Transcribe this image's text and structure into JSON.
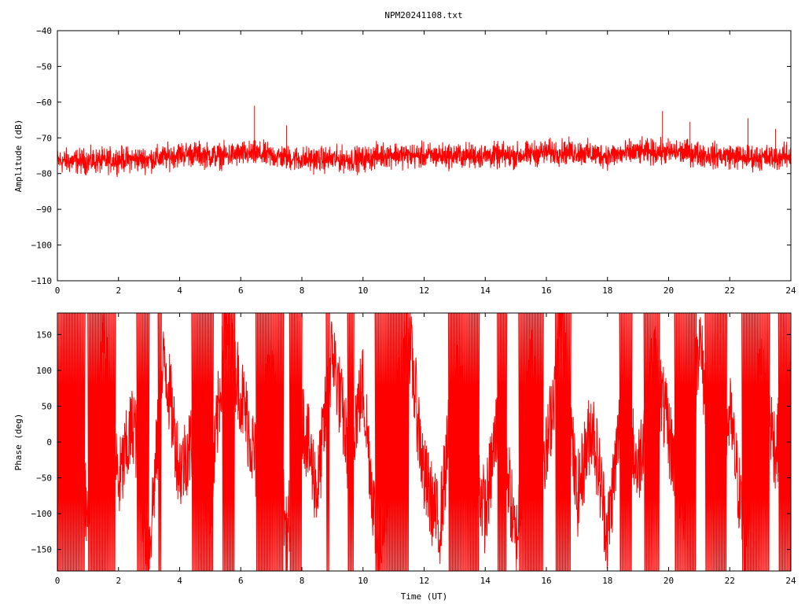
{
  "page_title": "NPM20241108.txt",
  "chart_data": [
    {
      "type": "line",
      "title": "NPM20241108.txt",
      "xlabel": "",
      "ylabel": "Amplitude (dB)",
      "xlim": [
        0,
        24
      ],
      "ylim": [
        -110,
        -40
      ],
      "xticks": [
        0,
        2,
        4,
        6,
        8,
        10,
        12,
        14,
        16,
        18,
        20,
        22,
        24
      ],
      "yticks": [
        -40,
        -50,
        -60,
        -70,
        -80,
        -90,
        -100,
        -110
      ],
      "grid": false,
      "legend": "none",
      "color": "#ff0000",
      "series": [
        {
          "x": [
            0,
            0.5,
            1,
            1.5,
            2,
            2.5,
            3,
            3.5,
            4,
            4.5,
            5,
            5.5,
            6,
            6.5,
            7,
            7.5,
            8,
            8.5,
            9,
            9.5,
            10,
            10.5,
            11,
            11.5,
            12,
            12.5,
            13,
            13.5,
            14,
            14.5,
            15,
            15.5,
            16,
            16.5,
            17,
            17.5,
            18,
            18.5,
            19,
            19.5,
            20,
            20.5,
            21,
            21.5,
            22,
            22.5,
            23,
            23.5,
            24
          ],
          "center": [
            -76.5,
            -76.5,
            -76.5,
            -76.5,
            -76,
            -76,
            -76,
            -75.5,
            -74.5,
            -74.5,
            -75,
            -75,
            -74.5,
            -74.5,
            -75,
            -75.5,
            -76,
            -76,
            -76,
            -76,
            -76,
            -75,
            -74.5,
            -75,
            -75,
            -75,
            -75,
            -75,
            -75,
            -75,
            -75,
            -74.5,
            -74,
            -74,
            -74,
            -74.5,
            -75,
            -74.5,
            -74,
            -74,
            -74,
            -74,
            -74.5,
            -75,
            -75,
            -75.5,
            -75.5,
            -75.5,
            -75
          ],
          "spread": [
            4.5,
            4.5,
            4.5,
            4.5,
            4.5,
            4.5,
            4.5,
            4.5,
            4.5,
            4.5,
            4.5,
            4.5,
            4.5,
            4.5,
            4.5,
            4.5,
            4.5,
            4.5,
            4.5,
            4.5,
            4.5,
            4.5,
            4.5,
            4.5,
            4.5,
            4.5,
            4.5,
            4.5,
            4.5,
            4.5,
            4.5,
            4.5,
            4.5,
            4.5,
            4.5,
            4.5,
            4.5,
            4.5,
            4.5,
            4.5,
            4.5,
            4.5,
            4.5,
            4.5,
            4.5,
            4.5,
            4.5,
            4.5,
            4.5
          ],
          "spikes": [
            [
              6.45,
              -61
            ],
            [
              7.5,
              -66.5
            ],
            [
              19.8,
              -62.5
            ],
            [
              20.7,
              -65.5
            ],
            [
              22.6,
              -64.5
            ],
            [
              23.5,
              -67.5
            ]
          ]
        }
      ]
    },
    {
      "type": "line",
      "title": "",
      "xlabel": "Time (UT)",
      "ylabel": "Phase (deg)",
      "xlim": [
        0,
        24
      ],
      "ylim": [
        -180,
        180
      ],
      "xticks": [
        0,
        2,
        4,
        6,
        8,
        10,
        12,
        14,
        16,
        18,
        20,
        22,
        24
      ],
      "yticks": [
        150,
        100,
        50,
        0,
        -50,
        -100,
        -150
      ],
      "grid": false,
      "legend": "none",
      "color": "#ff0000",
      "series": [
        {
          "x": [
            0,
            0.5,
            1,
            1.5,
            2,
            2.5,
            3,
            3.5,
            4,
            4.5,
            5,
            5.5,
            6,
            6.5,
            7,
            7.5,
            8,
            8.5,
            9,
            9.5,
            10,
            10.5,
            11,
            11.5,
            12,
            12.5,
            13,
            13.5,
            14,
            14.5,
            15,
            15.5,
            16,
            16.5,
            17,
            17.5,
            18,
            18.5,
            19,
            19.5,
            20,
            20.5,
            21,
            21.5,
            22,
            22.5,
            23,
            23.5,
            24
          ],
          "y": [
            -20,
            60,
            -110,
            140,
            -60,
            30,
            -150,
            120,
            -40,
            10,
            -90,
            160,
            70,
            -30,
            100,
            -140,
            40,
            -70,
            130,
            -10,
            80,
            -160,
            20,
            150,
            -50,
            -120,
            90,
            0,
            -100,
            60,
            -150,
            110,
            -20,
            170,
            -80,
            30,
            -130,
            60,
            -40,
            120,
            10,
            -90,
            150,
            -60,
            40,
            -140,
            100,
            -10,
            60
          ],
          "wrap_bands": [
            [
              0,
              0.9
            ],
            [
              1.0,
              1.9
            ],
            [
              2.6,
              3.0
            ],
            [
              3.3,
              3.4
            ],
            [
              4.4,
              5.1
            ],
            [
              5.4,
              5.8
            ],
            [
              6.5,
              7.4
            ],
            [
              7.6,
              8.0
            ],
            [
              8.8,
              8.9
            ],
            [
              9.5,
              9.7
            ],
            [
              10.4,
              11.5
            ],
            [
              12.8,
              13.8
            ],
            [
              14.4,
              14.7
            ],
            [
              15.1,
              15.9
            ],
            [
              16.3,
              16.8
            ],
            [
              18.4,
              18.8
            ],
            [
              19.2,
              19.7
            ],
            [
              20.2,
              20.9
            ],
            [
              21.2,
              21.9
            ],
            [
              22.4,
              23.3
            ],
            [
              23.6,
              24
            ]
          ]
        }
      ]
    }
  ]
}
